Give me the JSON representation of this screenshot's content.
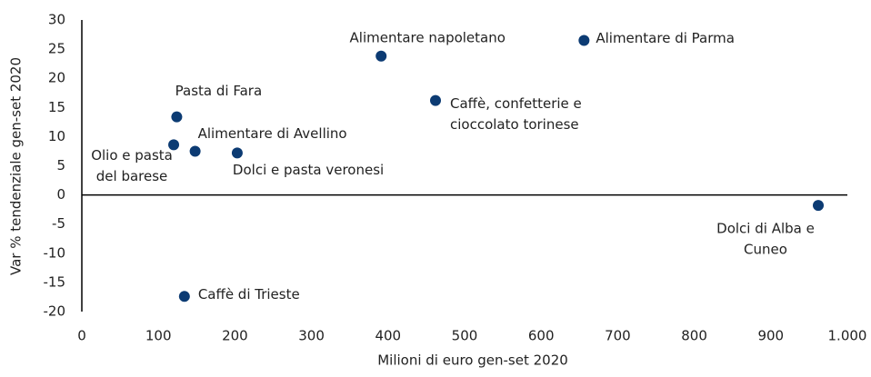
{
  "chart_data": {
    "type": "scatter",
    "x_label": "Milioni di euro  gen-set 2020",
    "y_label": "Var % tendenziale gen-set 2020",
    "color": "#0c3b73",
    "xlim": [
      0,
      1000
    ],
    "ylim": [
      -20,
      30
    ],
    "xticks": [
      0,
      100,
      200,
      300,
      400,
      500,
      600,
      700,
      800,
      900,
      {
        "value": 1000,
        "label": "1.000"
      }
    ],
    "yticks": [
      -20,
      -15,
      -10,
      -5,
      0,
      5,
      10,
      15,
      20,
      25,
      30
    ],
    "x": [
      391,
      656,
      462,
      124,
      120,
      148,
      203,
      134,
      962
    ],
    "values": [
      23.8,
      26.5,
      16.2,
      13.4,
      8.6,
      7.5,
      7.2,
      -17.4,
      -1.8
    ],
    "labels": [
      [
        "Alimentare napoletano"
      ],
      [
        "Alimentare di Parma"
      ],
      [
        "Caffè, confetterie e",
        "cioccolato torinese"
      ],
      [
        "Pasta di Fara"
      ],
      [
        "Olio e pasta",
        "del barese"
      ],
      [
        "Alimentare di Avellino"
      ],
      [
        "Dolci e pasta veronesi"
      ],
      [
        "Caffè di Trieste"
      ],
      [
        "Dolci di Alba e",
        "Cuneo"
      ]
    ]
  }
}
